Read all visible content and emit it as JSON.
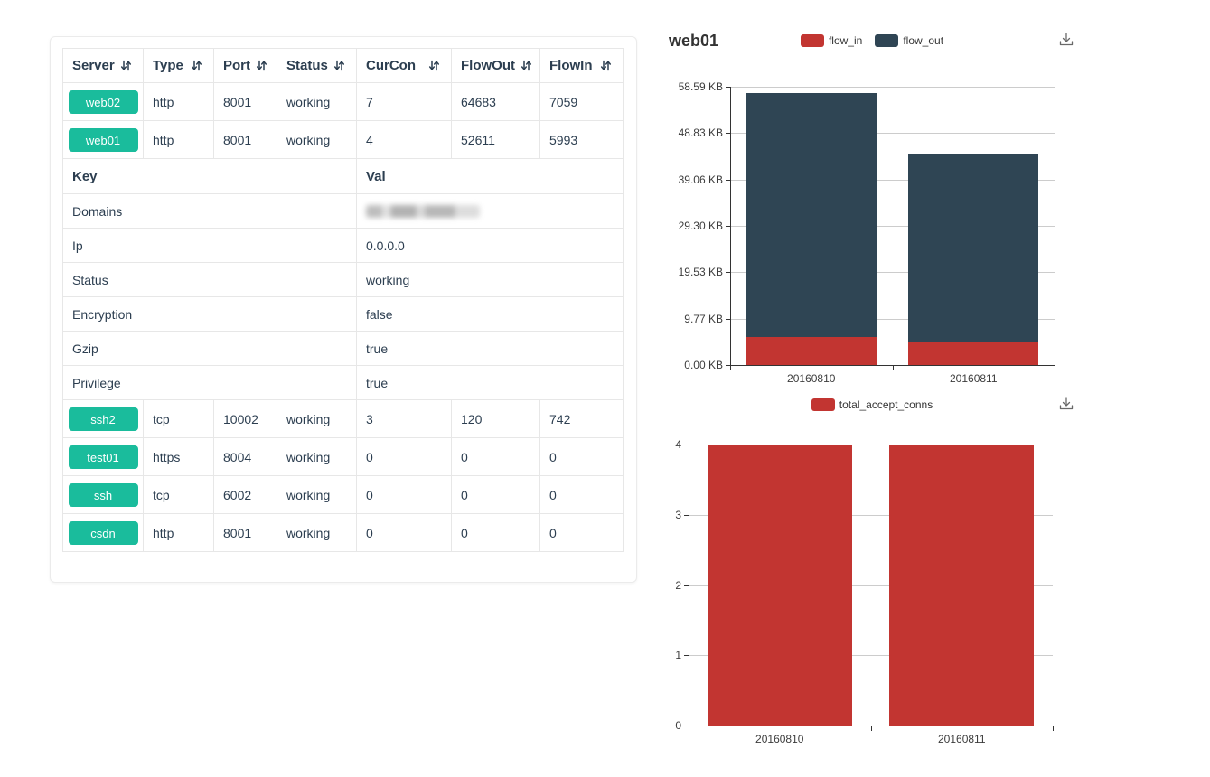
{
  "colors": {
    "badge_teal": "#1abc9c",
    "table_text": "#2c3e50",
    "table_border": "#e7e7e7",
    "chart_red": "#c23531",
    "chart_slate": "#2f4554",
    "grid_line": "#cccccc",
    "axis_line": "#333333",
    "icon_gray": "#696969"
  },
  "icons": {
    "sort-arrows-icon": "⇵",
    "save-as-image-icon": "⤓"
  },
  "table": {
    "columns": [
      {
        "label": "Server",
        "sortable": true
      },
      {
        "label": "Type",
        "sortable": true
      },
      {
        "label": "Port",
        "sortable": true
      },
      {
        "label": "Status",
        "sortable": true
      },
      {
        "label": "CurCon",
        "sortable": true
      },
      {
        "label": "FlowOut",
        "sortable": true
      },
      {
        "label": "FlowIn",
        "sortable": true
      }
    ],
    "rows_top": [
      {
        "server": "web02",
        "type": "http",
        "port": "8001",
        "status": "working",
        "curcon": "7",
        "flowout": "64683",
        "flowin": "7059"
      },
      {
        "server": "web01",
        "type": "http",
        "port": "8001",
        "status": "working",
        "curcon": "4",
        "flowout": "52611",
        "flowin": "5993"
      }
    ],
    "kv_header": {
      "key": "Key",
      "val": "Val"
    },
    "kv_rows": [
      {
        "key": "Domains",
        "val": "",
        "redacted": true
      },
      {
        "key": "Ip",
        "val": "0.0.0.0",
        "redacted": false
      },
      {
        "key": "Status",
        "val": "working",
        "redacted": false
      },
      {
        "key": "Encryption",
        "val": "false",
        "redacted": false
      },
      {
        "key": "Gzip",
        "val": "true",
        "redacted": false
      },
      {
        "key": "Privilege",
        "val": "true",
        "redacted": false
      }
    ],
    "rows_bottom": [
      {
        "server": "ssh2",
        "type": "tcp",
        "port": "10002",
        "status": "working",
        "curcon": "3",
        "flowout": "120",
        "flowin": "742"
      },
      {
        "server": "test01",
        "type": "https",
        "port": "8004",
        "status": "working",
        "curcon": "0",
        "flowout": "0",
        "flowin": "0"
      },
      {
        "server": "ssh",
        "type": "tcp",
        "port": "6002",
        "status": "working",
        "curcon": "0",
        "flowout": "0",
        "flowin": "0"
      },
      {
        "server": "csdn",
        "type": "http",
        "port": "8001",
        "status": "working",
        "curcon": "0",
        "flowout": "0",
        "flowin": "0"
      }
    ]
  },
  "chart_data": [
    {
      "type": "bar",
      "stacked": true,
      "title": "web01",
      "categories": [
        "20160810",
        "20160811"
      ],
      "series": [
        {
          "name": "flow_in",
          "color": "#c23531",
          "values": [
            5.85,
            4.76
          ]
        },
        {
          "name": "flow_out",
          "color": "#2f4554",
          "values": [
            51.38,
            39.6
          ]
        }
      ],
      "unit": "KB",
      "ylim": [
        0,
        58.59
      ],
      "y_ticks": [
        "58.59 KB",
        "48.83 KB",
        "39.06 KB",
        "29.30 KB",
        "19.53 KB",
        "9.77 KB",
        "0.00 KB"
      ],
      "grid": true,
      "legend_position": "top-center",
      "toolbox": [
        "save-as-image"
      ]
    },
    {
      "type": "bar",
      "stacked": false,
      "title": "",
      "categories": [
        "20160810",
        "20160811"
      ],
      "series": [
        {
          "name": "total_accept_conns",
          "color": "#c23531",
          "values": [
            4,
            4
          ]
        }
      ],
      "unit": "",
      "ylim": [
        0,
        4
      ],
      "y_ticks": [
        "4",
        "3",
        "2",
        "1",
        "0"
      ],
      "grid": true,
      "legend_position": "top-center",
      "toolbox": [
        "save-as-image"
      ]
    }
  ]
}
